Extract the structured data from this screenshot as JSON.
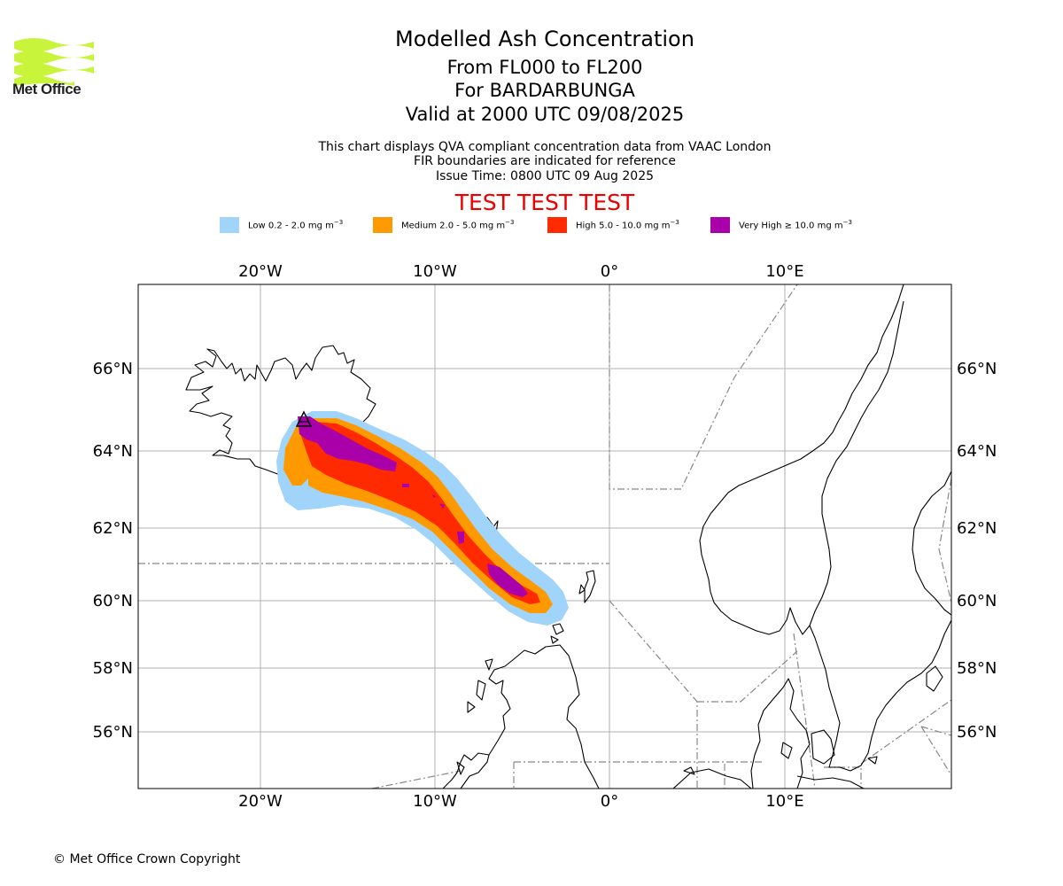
{
  "header": {
    "logo_text": "Met Office",
    "title": "Modelled Ash Concentration",
    "subtitle_levels": "From FL000 to FL200",
    "subtitle_volcano": "For BARDARBUNGA",
    "subtitle_valid": "Valid at 2000 UTC 09/08/2025",
    "info_line1": "This chart displays QVA compliant concentration data from VAAC London",
    "info_line2": "FIR boundaries are indicated for reference",
    "info_line3": "Issue Time: 0800 UTC 09 Aug 2025",
    "test_banner": "TEST TEST TEST"
  },
  "legend": [
    {
      "label": "Low 0.2 - 2.0 mg m",
      "unit_exp": "−3",
      "color": "#a0d4fa"
    },
    {
      "label": "Medium 2.0 - 5.0 mg m",
      "unit_exp": "−3",
      "color": "#ff9900"
    },
    {
      "label": "High 5.0 - 10.0 mg m",
      "unit_exp": "−3",
      "color": "#ff2a00"
    },
    {
      "label": "Very High  ≥  10.0 mg m",
      "unit_exp": "−3",
      "color": "#aa00aa"
    }
  ],
  "map": {
    "lon_range": [
      -27,
      19.5
    ],
    "lat_range": [
      54.5,
      67.5
    ],
    "lon_ticks": [
      "20°W",
      "10°W",
      "0°",
      "10°E"
    ],
    "lat_ticks": [
      "66°N",
      "64°N",
      "62°N",
      "60°N",
      "58°N",
      "56°N"
    ],
    "volcano_marker": "triangle-icon",
    "colors": {
      "low": "#a0d4fa",
      "medium": "#ff9900",
      "high": "#ff2a00",
      "very_high": "#aa00aa",
      "logo": "#c8f53b"
    }
  },
  "footer": {
    "copyright": "© Met Office Crown Copyright"
  }
}
